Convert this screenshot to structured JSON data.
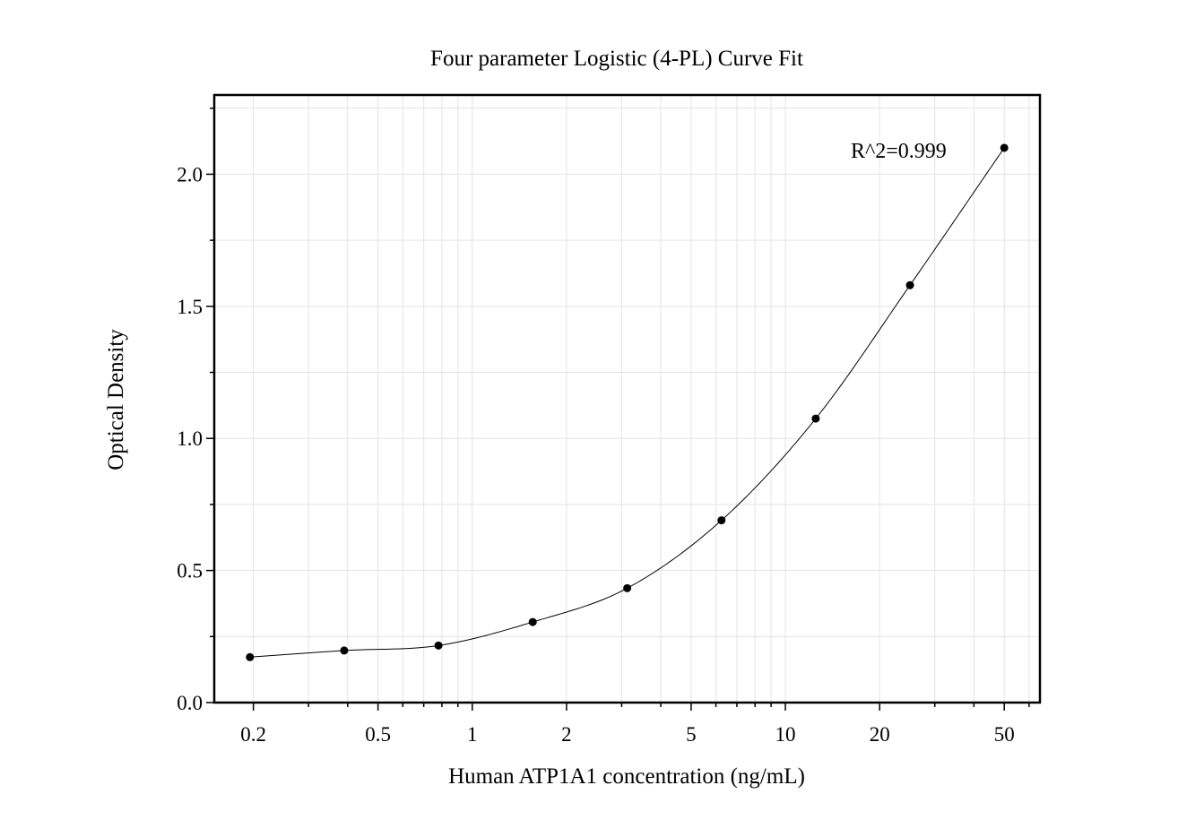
{
  "chart_data": {
    "type": "scatter",
    "title": "Four parameter Logistic (4-PL) Curve Fit",
    "xlabel": "Human ATP1A1 concentration (ng/mL)",
    "ylabel": "Optical Density",
    "x_scale": "log",
    "xlim": [
      0.15,
      65
    ],
    "ylim": [
      0,
      2.3
    ],
    "x_ticks": [
      0.2,
      0.5,
      1,
      2,
      5,
      10,
      20,
      50
    ],
    "x_tick_labels": [
      "0.2",
      "0.5",
      "1",
      "2",
      "5",
      "10",
      "20",
      "50"
    ],
    "y_ticks": [
      0,
      0.5,
      1,
      1.5,
      2
    ],
    "y_tick_labels": [
      "0.0",
      "0.5",
      "1.0",
      "1.5",
      "2.0"
    ],
    "grid": true,
    "series": [
      {
        "x": [
          0.195,
          0.39,
          0.78,
          1.56,
          3.125,
          6.25,
          12.5,
          25,
          50
        ],
        "y": [
          0.172,
          0.197,
          0.216,
          0.305,
          0.433,
          0.69,
          1.075,
          1.58,
          2.1
        ]
      }
    ],
    "fit_curve": true,
    "annotation": "R^2=0.999"
  }
}
